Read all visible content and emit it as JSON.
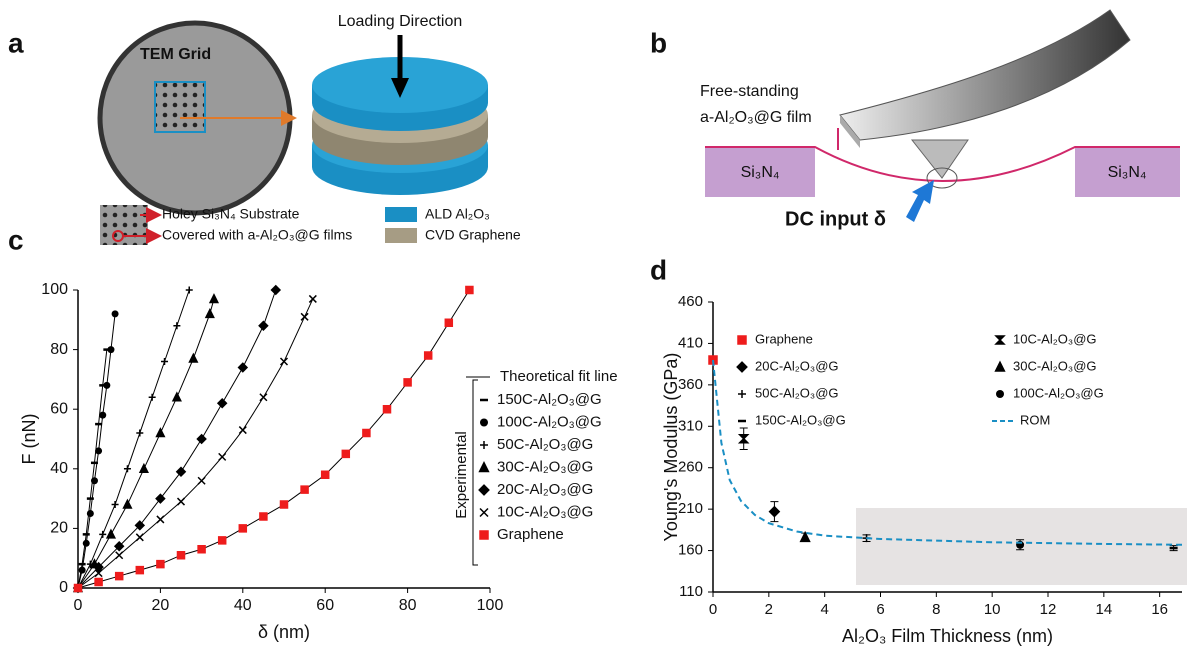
{
  "panel_labels": [
    "a",
    "b",
    "c",
    "d"
  ],
  "figure_a": {
    "loading_direction": "Loading Direction",
    "tem_grid": "TEM Grid",
    "legend": [
      "Holey Si₃N₄ Substrate",
      "Covered with a-Al₂O₃@G films",
      "ALD Al₂O₃",
      "CVD Graphene"
    ]
  },
  "figure_b": {
    "film_label": [
      "Free-standing",
      "a-Al₂O₃@G film"
    ],
    "substrate": [
      "Si₃N₄",
      "Si₃N₄"
    ],
    "input": "DC input δ"
  },
  "chart_data": [
    {
      "type": "scatter",
      "xlabel": "δ (nm)",
      "ylabel": "F (nN)",
      "xlim": [
        0,
        100
      ],
      "ylim": [
        0,
        100
      ],
      "xticks": [
        0,
        20,
        40,
        60,
        80,
        100
      ],
      "yticks": [
        0,
        20,
        40,
        60,
        80,
        100
      ],
      "fit_line_label": "Theoretical fit line",
      "legend_group": "Experimental",
      "series": [
        {
          "name": "150C-Al₂O₃@G",
          "marker": "dash",
          "color": "#000000",
          "x": [
            0,
            1,
            2,
            3,
            4,
            5,
            6,
            7
          ],
          "values": [
            0,
            8,
            18,
            30,
            42,
            55,
            68,
            80
          ]
        },
        {
          "name": "100C-Al₂O₃@G",
          "marker": "circle",
          "color": "#000000",
          "x": [
            0,
            1,
            2,
            3,
            4,
            5,
            6,
            7,
            8,
            9
          ],
          "values": [
            0,
            6,
            15,
            25,
            36,
            46,
            58,
            68,
            80,
            92
          ]
        },
        {
          "name": "50C-Al₂O₃@G",
          "marker": "plus",
          "color": "#000000",
          "x": [
            0,
            3,
            6,
            9,
            12,
            15,
            18,
            21,
            24,
            27
          ],
          "values": [
            0,
            8,
            18,
            28,
            40,
            52,
            64,
            76,
            88,
            100
          ]
        },
        {
          "name": "30C-Al₂O₃@G",
          "marker": "triangle",
          "color": "#000000",
          "x": [
            0,
            4,
            8,
            12,
            16,
            20,
            24,
            28,
            32,
            33
          ],
          "values": [
            0,
            8,
            18,
            28,
            40,
            52,
            64,
            77,
            92,
            97
          ]
        },
        {
          "name": "20C-Al₂O₃@G",
          "marker": "diamond",
          "color": "#000000",
          "x": [
            0,
            5,
            10,
            15,
            20,
            25,
            30,
            35,
            40,
            45,
            48
          ],
          "values": [
            0,
            7,
            14,
            21,
            30,
            39,
            50,
            62,
            74,
            88,
            100
          ]
        },
        {
          "name": "10C-Al₂O₃@G",
          "marker": "x",
          "color": "#000000",
          "x": [
            0,
            5,
            10,
            15,
            20,
            25,
            30,
            35,
            40,
            45,
            50,
            55,
            57
          ],
          "values": [
            0,
            5,
            11,
            17,
            23,
            29,
            36,
            44,
            53,
            64,
            76,
            91,
            97
          ]
        },
        {
          "name": "Graphene",
          "marker": "square",
          "color": "#ee1c1c",
          "x": [
            0,
            5,
            10,
            15,
            20,
            25,
            30,
            35,
            40,
            45,
            50,
            55,
            60,
            65,
            70,
            75,
            80,
            85,
            90,
            95
          ],
          "values": [
            0,
            2,
            4,
            6,
            8,
            11,
            13,
            16,
            20,
            24,
            28,
            33,
            38,
            45,
            52,
            60,
            69,
            78,
            89,
            100
          ]
        }
      ]
    },
    {
      "type": "scatter",
      "xlabel": "Al₂O₃ Film Thickness (nm)",
      "ylabel": "Young's Modulus (GPa)",
      "xlim": [
        0,
        16.8
      ],
      "ylim": [
        110,
        460
      ],
      "xticks": [
        0,
        2,
        4,
        6,
        8,
        10,
        12,
        14,
        16
      ],
      "yticks": [
        110,
        160,
        210,
        260,
        310,
        360,
        410,
        460
      ],
      "series": [
        {
          "name": "Graphene",
          "marker": "square",
          "color": "#ee1c1c",
          "x": [
            0
          ],
          "values": [
            390
          ]
        },
        {
          "name": "10C-Al₂O₃@G",
          "marker": "bowtie",
          "color": "#000000",
          "x": [
            1.1
          ],
          "values": [
            295
          ],
          "errors": [
            13
          ]
        },
        {
          "name": "20C-Al₂O₃@G",
          "marker": "diamond",
          "color": "#000000",
          "x": [
            2.2
          ],
          "values": [
            207
          ],
          "errors": [
            12
          ]
        },
        {
          "name": "30C-Al₂O₃@G",
          "marker": "triangle",
          "color": "#000000",
          "x": [
            3.3
          ],
          "values": [
            176
          ],
          "errors": [
            5
          ]
        },
        {
          "name": "50C-Al₂O₃@G",
          "marker": "plus",
          "color": "#000000",
          "x": [
            5.5
          ],
          "values": [
            175
          ],
          "errors": [
            4
          ]
        },
        {
          "name": "100C-Al₂O₃@G",
          "marker": "circle",
          "color": "#000000",
          "x": [
            11
          ],
          "values": [
            167
          ],
          "errors": [
            6
          ]
        },
        {
          "name": "150C-Al₂O₃@G",
          "marker": "dash",
          "color": "#000000",
          "x": [
            16.5
          ],
          "values": [
            163
          ],
          "errors": [
            3
          ]
        },
        {
          "name": "ROM",
          "marker": "dashed-line",
          "color": "#1a8fc4",
          "x": [
            0,
            0.3,
            0.6,
            1,
            1.5,
            2,
            3,
            4,
            6,
            8,
            10,
            12,
            14,
            16.8
          ],
          "values": [
            390,
            290,
            245,
            220,
            203,
            193,
            183,
            178,
            174,
            172,
            170,
            169,
            168,
            167
          ]
        }
      ]
    }
  ]
}
